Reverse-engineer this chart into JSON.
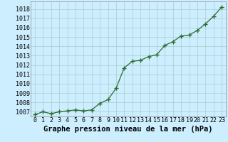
{
  "x": [
    0,
    1,
    2,
    3,
    4,
    5,
    6,
    7,
    8,
    9,
    10,
    11,
    12,
    13,
    14,
    15,
    16,
    17,
    18,
    19,
    20,
    21,
    22,
    23
  ],
  "y": [
    1006.7,
    1007.0,
    1006.8,
    1007.0,
    1007.1,
    1007.2,
    1007.1,
    1007.2,
    1007.9,
    1008.3,
    1009.5,
    1011.7,
    1012.4,
    1012.5,
    1012.9,
    1013.1,
    1014.1,
    1014.5,
    1015.1,
    1015.2,
    1015.7,
    1016.4,
    1017.2,
    1018.2
  ],
  "xlabel": "Graphe pression niveau de la mer (hPa)",
  "ylim_min": 1006.5,
  "ylim_max": 1018.8,
  "ytick_min": 1007,
  "ytick_max": 1018,
  "ytick_step": 1,
  "line_color": "#2d6b2d",
  "marker_color": "#2d6b2d",
  "bg_color": "#cceeff",
  "grid_color": "#aacccc",
  "tick_fontsize": 6.0,
  "xlabel_fontsize": 7.5
}
